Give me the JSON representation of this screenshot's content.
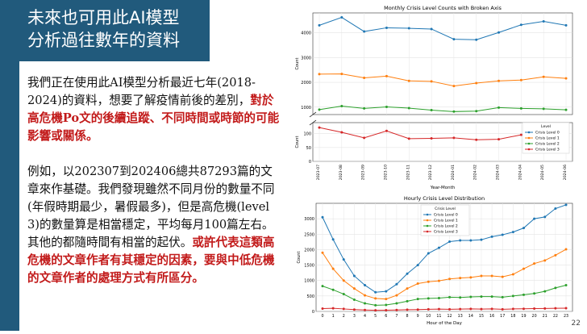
{
  "slide": {
    "title_line1": "未來也可用此AI模型",
    "title_line2": "分析過往數年的資料",
    "para1_normal": "我們正在使用此AI模型分析最近七年(2018-2024)的資料，想要了解疫情前後的差別，",
    "para1_emph": "對於高危機Po文的後續追蹤、不同時間或時節的可能影響或關係。",
    "para2_normal": "例如，以202307到202406總共87293篇的文章來作基礎。我們發現雖然不同月份的數量不同(年假時期最少，暑假最多)，但是高危機(level 3)的數量算是相當穩定，平均每月100篇左右。其他的都隨時間有相當的起伏。",
    "para2_emph": "或許代表這類高危機的文章作者有其穩定的因素，要與中低危機的文章作者的處理方式有所區分。",
    "page_number": "22"
  },
  "chart_data": [
    {
      "type": "line",
      "title": "Monthly Crisis Level Counts with Broken Axis",
      "xlabel": "Year-Month",
      "ylabel": "Count",
      "categories": [
        "2023-07",
        "2023-08",
        "2023-09",
        "2023-10",
        "2023-11",
        "2023-12",
        "2024-01",
        "2024-02",
        "2024-03",
        "2024-04",
        "2024-05",
        "2024-06"
      ],
      "upper_yticks": [
        "1000",
        "2000",
        "3000",
        "4000"
      ],
      "lower_yticks": [
        "0",
        "50",
        "100"
      ],
      "legend_title": "Level",
      "legend_position": "right",
      "series": [
        {
          "name": "Crisis Level 0",
          "color": "#1f77b4",
          "values": [
            4300,
            4620,
            4050,
            4200,
            4180,
            4150,
            3740,
            3720,
            4010,
            4320,
            4460,
            4300
          ]
        },
        {
          "name": "Crisis Level 1",
          "color": "#ff7f0e",
          "values": [
            2330,
            2340,
            2180,
            2250,
            2060,
            2040,
            1850,
            1970,
            2060,
            2090,
            2220,
            2160
          ]
        },
        {
          "name": "Crisis Level 2",
          "color": "#2ca02c",
          "values": [
            900,
            1040,
            950,
            1010,
            960,
            880,
            820,
            840,
            980,
            950,
            930,
            890
          ]
        },
        {
          "name": "Crisis Level 3",
          "color": "#d62728",
          "values": [
            122,
            105,
            85,
            110,
            82,
            83,
            85,
            78,
            80,
            96,
            90,
            80
          ]
        }
      ],
      "grid": true
    },
    {
      "type": "line",
      "title": "Hourly Crisis Level Distribution",
      "xlabel": "Hour of the Day",
      "ylabel": "Count",
      "categories": [
        "0",
        "1",
        "2",
        "3",
        "4",
        "5",
        "6",
        "7",
        "8",
        "9",
        "10",
        "11",
        "12",
        "13",
        "14",
        "15",
        "16",
        "17",
        "18",
        "19",
        "20",
        "21",
        "22",
        "23"
      ],
      "yticks": [
        "0",
        "500",
        "1000",
        "1500",
        "2000",
        "2500",
        "3000"
      ],
      "ylim": [
        0,
        3500
      ],
      "legend_title": "Crisis Level",
      "legend_position": "upper-left",
      "series": [
        {
          "name": "Crisis Level 0",
          "color": "#1f77b4",
          "values": [
            3050,
            2330,
            1680,
            1150,
            850,
            620,
            650,
            880,
            1220,
            1500,
            1880,
            2060,
            2260,
            2300,
            2300,
            2320,
            2420,
            2480,
            2570,
            2700,
            3000,
            3060,
            3330,
            3450
          ]
        },
        {
          "name": "Crisis Level 1",
          "color": "#ff7f0e",
          "values": [
            1900,
            1380,
            1000,
            740,
            520,
            420,
            400,
            520,
            740,
            900,
            960,
            990,
            1050,
            1080,
            1100,
            1150,
            1150,
            1120,
            1200,
            1380,
            1550,
            1650,
            1820,
            2010
          ]
        },
        {
          "name": "Crisis Level 2",
          "color": "#2ca02c",
          "values": [
            820,
            700,
            560,
            380,
            260,
            200,
            210,
            260,
            330,
            400,
            420,
            430,
            460,
            450,
            470,
            480,
            480,
            460,
            500,
            540,
            580,
            650,
            760,
            850
          ]
        },
        {
          "name": "Crisis Level 3",
          "color": "#d62728",
          "values": [
            90,
            100,
            80,
            60,
            45,
            35,
            40,
            45,
            55,
            60,
            70,
            75,
            70,
            75,
            80,
            75,
            80,
            70,
            80,
            85,
            90,
            95,
            100,
            105
          ]
        }
      ],
      "grid": true
    }
  ]
}
